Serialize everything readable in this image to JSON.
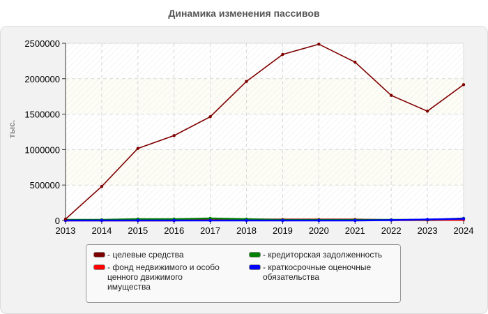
{
  "title": "Динамика изменения пассивов",
  "chart_data": {
    "type": "line",
    "title": "Динамика изменения пассивов",
    "xlabel": "",
    "ylabel": "тыс.",
    "x": [
      2013,
      2014,
      2015,
      2016,
      2017,
      2018,
      2019,
      2020,
      2021,
      2022,
      2023,
      2024
    ],
    "ylim": [
      0,
      2500000
    ],
    "yticks": [
      0,
      500000,
      1000000,
      1500000,
      2000000,
      2500000
    ],
    "ytick_labels": [
      "0",
      "500000",
      "1000000",
      "1500000",
      "2000000",
      "2500000"
    ],
    "xtick_labels": [
      "2013",
      "2014",
      "2015",
      "2016",
      "2017",
      "2018",
      "2019",
      "2020",
      "2021",
      "2022",
      "2023",
      "2024"
    ],
    "grid": true,
    "legend_position": "bottom",
    "series": [
      {
        "name": "целевые средства",
        "color": "#7f0000",
        "values": [
          20000,
          480000,
          1017000,
          1198000,
          1464000,
          1962000,
          2343000,
          2487000,
          2234000,
          1765000,
          1542000,
          1916000
        ]
      },
      {
        "name": "фонд недвижимого и особо ценного движимого имущества",
        "color": "#ff0000",
        "values": [
          0,
          0,
          0,
          0,
          15000,
          15000,
          15000,
          15000,
          15000,
          5000,
          5000,
          10000
        ]
      },
      {
        "name": "кредиторская задолженность",
        "color": "#008000",
        "values": [
          10000,
          10000,
          20000,
          20000,
          30000,
          20000,
          10000,
          10000,
          10000,
          10000,
          10000,
          30000
        ]
      },
      {
        "name": "краткосрочные оценочные обязательства",
        "color": "#0000ff",
        "values": [
          0,
          0,
          0,
          0,
          0,
          0,
          0,
          0,
          0,
          5000,
          15000,
          25000
        ]
      }
    ]
  },
  "legend": [
    {
      "label": "- целевые средства",
      "color": "#7f0000"
    },
    {
      "label": "- фонд недвижимого и особо\nценного движимого\nимущества",
      "color": "#ff0000"
    },
    {
      "label": "- кредиторская задолженность",
      "color": "#008000"
    },
    {
      "label": "- краткосрочные оценочные\nобязательства",
      "color": "#0000ff"
    }
  ]
}
